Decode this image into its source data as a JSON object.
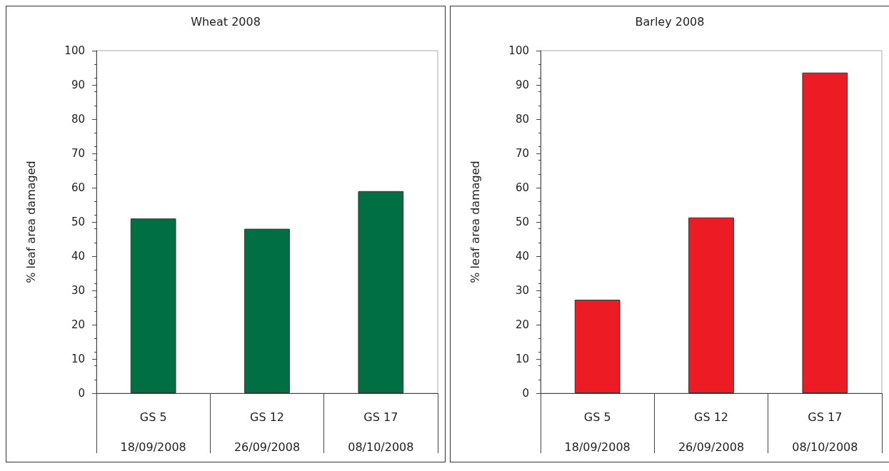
{
  "chart_data": [
    {
      "type": "bar",
      "title": "Wheat 2008",
      "ylabel": "% leaf area damaged",
      "categories": [
        "GS 5\n18/09/2008",
        "GS 12\n26/09/2008",
        "GS 17\n08/10/2008"
      ],
      "values": [
        51,
        48,
        59
      ],
      "color": "#006f44",
      "ylim": [
        0,
        100
      ],
      "yticks": [
        0,
        10,
        20,
        30,
        40,
        50,
        60,
        70,
        80,
        90,
        100
      ],
      "grid": false
    },
    {
      "type": "bar",
      "title": "Barley 2008",
      "ylabel": "% leaf area damaged",
      "categories": [
        "GS 5\n18/09/2008",
        "GS 12\n26/09/2008",
        "GS 17\n08/10/2008"
      ],
      "values": [
        27.3,
        51.3,
        93.6
      ],
      "color": "#ed1c24",
      "ylim": [
        0,
        100
      ],
      "yticks": [
        0,
        10,
        20,
        30,
        40,
        50,
        60,
        70,
        80,
        90,
        100
      ],
      "grid": false
    }
  ]
}
